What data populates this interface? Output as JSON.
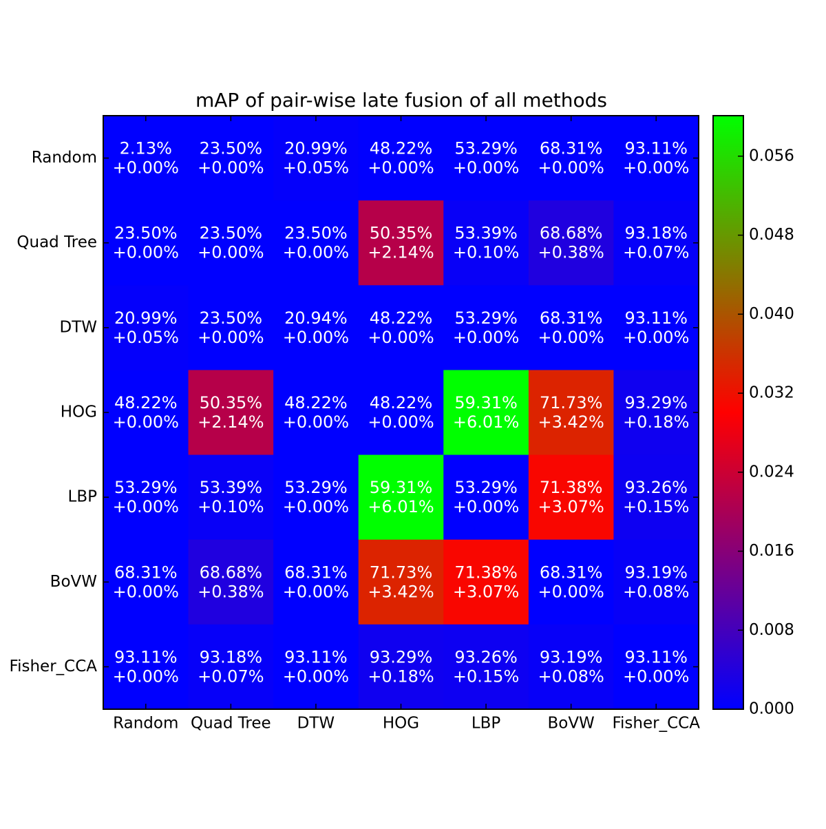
{
  "chart_data": {
    "type": "heatmap",
    "title": "mAP of pair-wise late fusion of all methods",
    "x_categories": [
      "Random",
      "Quad Tree",
      "DTW",
      "HOG",
      "LBP",
      "BoVW",
      "Fisher_CCA"
    ],
    "y_categories": [
      "Random",
      "Quad Tree",
      "DTW",
      "HOG",
      "LBP",
      "BoVW",
      "Fisher_CCA"
    ],
    "values": [
      [
        0,
        0,
        0.0005,
        0,
        0,
        0,
        0
      ],
      [
        0,
        0,
        0,
        0.0214,
        0.001,
        0.0038,
        0.0007
      ],
      [
        0.0005,
        0,
        0,
        0,
        0,
        0,
        0
      ],
      [
        0,
        0.0214,
        0,
        0,
        0.0601,
        0.0342,
        0.0018
      ],
      [
        0,
        0.001,
        0,
        0.0601,
        0,
        0.0307,
        0.0015
      ],
      [
        0,
        0.0038,
        0,
        0.0342,
        0.0307,
        0,
        0.0008
      ],
      [
        0,
        0.0007,
        0,
        0.0018,
        0.0015,
        0.0008,
        0
      ]
    ],
    "value_labels": [
      [
        "+0.00%",
        "+0.00%",
        "+0.05%",
        "+0.00%",
        "+0.00%",
        "+0.00%",
        "+0.00%"
      ],
      [
        "+0.00%",
        "+0.00%",
        "+0.00%",
        "+2.14%",
        "+0.10%",
        "+0.38%",
        "+0.07%"
      ],
      [
        "+0.05%",
        "+0.00%",
        "+0.00%",
        "+0.00%",
        "+0.00%",
        "+0.00%",
        "+0.00%"
      ],
      [
        "+0.00%",
        "+2.14%",
        "+0.00%",
        "+0.00%",
        "+6.01%",
        "+3.42%",
        "+0.18%"
      ],
      [
        "+0.00%",
        "+0.10%",
        "+0.00%",
        "+6.01%",
        "+0.00%",
        "+3.07%",
        "+0.15%"
      ],
      [
        "+0.00%",
        "+0.38%",
        "+0.00%",
        "+3.42%",
        "+3.07%",
        "+0.00%",
        "+0.08%"
      ],
      [
        "+0.00%",
        "+0.07%",
        "+0.00%",
        "+0.18%",
        "+0.15%",
        "+0.08%",
        "+0.00%"
      ]
    ],
    "map_labels": [
      [
        "2.13%",
        "23.50%",
        "20.99%",
        "48.22%",
        "53.29%",
        "68.31%",
        "93.11%"
      ],
      [
        "23.50%",
        "23.50%",
        "23.50%",
        "50.35%",
        "53.39%",
        "68.68%",
        "93.18%"
      ],
      [
        "20.99%",
        "23.50%",
        "20.94%",
        "48.22%",
        "53.29%",
        "68.31%",
        "93.11%"
      ],
      [
        "48.22%",
        "50.35%",
        "48.22%",
        "48.22%",
        "59.31%",
        "71.73%",
        "93.29%"
      ],
      [
        "53.29%",
        "53.39%",
        "53.29%",
        "59.31%",
        "53.29%",
        "71.38%",
        "93.26%"
      ],
      [
        "68.31%",
        "68.68%",
        "68.31%",
        "71.73%",
        "71.38%",
        "68.31%",
        "93.19%"
      ],
      [
        "93.11%",
        "93.18%",
        "93.11%",
        "93.29%",
        "93.26%",
        "93.19%",
        "93.11%"
      ]
    ],
    "colormap": [
      "#0000ff",
      "#ff0000",
      "#00ff00"
    ],
    "clim": [
      0,
      0.0601
    ],
    "cticks": [
      {
        "value": 0,
        "label": "0.000"
      },
      0.008,
      0.016,
      0.024,
      0.032,
      {
        "value": 0.04,
        "label": "0.040"
      },
      0.048,
      0.056
    ]
  }
}
